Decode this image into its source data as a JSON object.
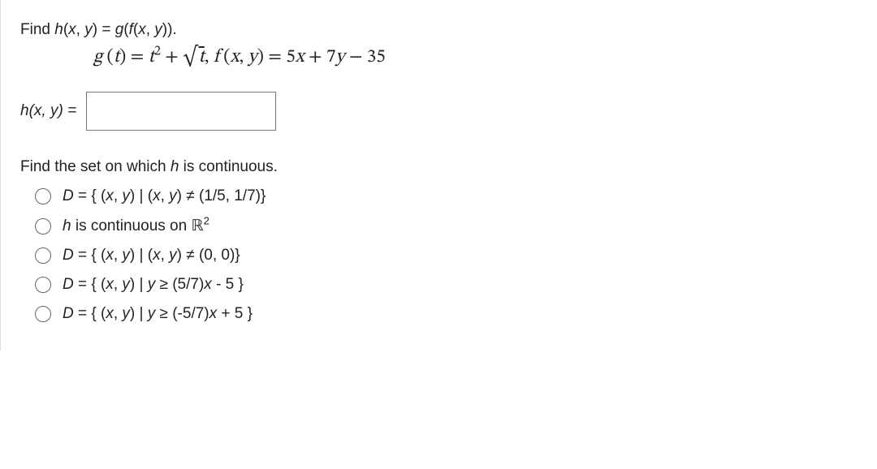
{
  "prompt1_before": "Find ",
  "prompt1_h": "h",
  "prompt1_p1": "(",
  "prompt1_x": "x",
  "prompt1_c1": ", ",
  "prompt1_y": "y",
  "prompt1_p2": ") = ",
  "prompt1_g": "g",
  "prompt1_p3": "(",
  "prompt1_f": "f",
  "prompt1_p4": "(",
  "prompt1_x2": "x",
  "prompt1_c2": ", ",
  "prompt1_y2": "y",
  "prompt1_p5": ")).",
  "equation": {
    "g": "g",
    "lp1": " (",
    "t": "t",
    "rp1": ") = ",
    "t2": "t",
    "sq": "2",
    "plus1": " + ",
    "rad": "√",
    "tsqrt": "t",
    "comma": ",  ",
    "f": "f",
    "lp2": " (",
    "x": "x",
    "c": ", ",
    "y": "y",
    "rp2": ") = ",
    "rhs": "5",
    "x2": "x",
    "plus2": " + 7",
    "y2": "y",
    "minus": " − 35"
  },
  "ans_label_h": "h",
  "ans_label_p1": "(",
  "ans_label_x": "x",
  "ans_label_c": ", ",
  "ans_label_y": "y",
  "ans_label_p2": ") = ",
  "prompt2_a": "Find the set on which ",
  "prompt2_h": "h",
  "prompt2_b": " is continuous.",
  "options": {
    "o1a": "D",
    "o1b": " = { (",
    "o1x": "x",
    "o1c1": ", ",
    "o1y": "y",
    "o1c": ") | (",
    "o1x2": "x",
    "o1c2": ", ",
    "o1y2": "y",
    "o1d": ") ≠ (1/5, 1/7)}",
    "o2a": "h",
    "o2b": " is continuous on ",
    "o2r": "ℝ",
    "o2sup": "2",
    "o3a": "D",
    "o3b": " = { (",
    "o3x": "x",
    "o3c1": ", ",
    "o3y": "y",
    "o3c": ") | (",
    "o3x2": "x",
    "o3c2": ", ",
    "o3y2": "y",
    "o3d": ") ≠ (0, 0)}",
    "o4a": "D",
    "o4b": " = { (",
    "o4x": "x",
    "o4c1": ", ",
    "o4y": "y",
    "o4c": ") | ",
    "o4y2": "y",
    "o4d": " ≥ (5/7)",
    "o4x2": "x",
    "o4e": " - 5 }",
    "o5a": "D",
    "o5b": " = { (",
    "o5x": "x",
    "o5c1": ", ",
    "o5y": "y",
    "o5c": ") | ",
    "o5y2": "y",
    "o5d": " ≥ (-5/7)",
    "o5x2": "x",
    "o5e": " + 5 }"
  }
}
